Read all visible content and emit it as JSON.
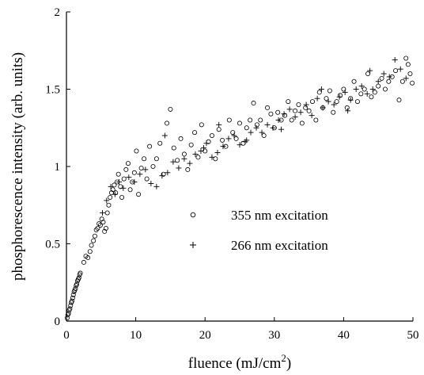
{
  "chart_data": {
    "type": "scatter",
    "title": "",
    "xlabel": "fluence (mJ/cm",
    "xlabel_superscript": "2",
    "xlabel_suffix": ")",
    "ylabel": "phosphorescence intensity (arb. units)",
    "xlim": [
      0,
      50
    ],
    "ylim": [
      0,
      2
    ],
    "x_ticks": [
      "0",
      "10",
      "20",
      "30",
      "40",
      "50"
    ],
    "y_ticks": [
      "0",
      "0.5",
      "1",
      "1.5",
      "2"
    ],
    "grid": false,
    "legend_position": "center-right",
    "legend": [
      {
        "marker": "circle",
        "label": "355 nm excitation"
      },
      {
        "marker": "plus",
        "label": "266 nm excitation"
      }
    ],
    "series": [
      {
        "name": "355 nm excitation",
        "marker": "circle",
        "points": [
          [
            0.1,
            0.02
          ],
          [
            0.2,
            0.04
          ],
          [
            0.3,
            0.05
          ],
          [
            0.4,
            0.07
          ],
          [
            0.5,
            0.08
          ],
          [
            0.6,
            0.1
          ],
          [
            0.7,
            0.12
          ],
          [
            0.8,
            0.13
          ],
          [
            0.9,
            0.15
          ],
          [
            1.0,
            0.17
          ],
          [
            1.1,
            0.19
          ],
          [
            1.2,
            0.2
          ],
          [
            1.3,
            0.21
          ],
          [
            1.4,
            0.23
          ],
          [
            1.5,
            0.24
          ],
          [
            1.6,
            0.26
          ],
          [
            1.7,
            0.27
          ],
          [
            1.8,
            0.28
          ],
          [
            1.9,
            0.3
          ],
          [
            2.0,
            0.31
          ],
          [
            2.5,
            0.38
          ],
          [
            2.8,
            0.42
          ],
          [
            3.1,
            0.41
          ],
          [
            3.4,
            0.45
          ],
          [
            3.6,
            0.49
          ],
          [
            3.9,
            0.52
          ],
          [
            4.1,
            0.55
          ],
          [
            4.3,
            0.59
          ],
          [
            4.5,
            0.6
          ],
          [
            4.7,
            0.63
          ],
          [
            4.9,
            0.62
          ],
          [
            5.1,
            0.66
          ],
          [
            5.3,
            0.64
          ],
          [
            5.5,
            0.58
          ],
          [
            5.7,
            0.6
          ],
          [
            5.9,
            0.7
          ],
          [
            6.1,
            0.75
          ],
          [
            6.3,
            0.8
          ],
          [
            6.5,
            0.83
          ],
          [
            6.7,
            0.85
          ],
          [
            6.9,
            0.88
          ],
          [
            7.1,
            0.83
          ],
          [
            7.3,
            0.9
          ],
          [
            7.5,
            0.95
          ],
          [
            7.8,
            0.87
          ],
          [
            8.0,
            0.8
          ],
          [
            8.3,
            0.92
          ],
          [
            8.6,
            0.98
          ],
          [
            8.9,
            1.02
          ],
          [
            9.2,
            0.85
          ],
          [
            9.5,
            0.9
          ],
          [
            9.8,
            0.96
          ],
          [
            10.1,
            1.1
          ],
          [
            10.4,
            0.82
          ],
          [
            10.8,
            0.99
          ],
          [
            11.2,
            1.05
          ],
          [
            11.6,
            0.92
          ],
          [
            12.0,
            1.13
          ],
          [
            12.5,
            1.0
          ],
          [
            13.0,
            1.05
          ],
          [
            13.5,
            1.15
          ],
          [
            14.0,
            0.95
          ],
          [
            14.5,
            1.28
          ],
          [
            15.0,
            1.37
          ],
          [
            15.5,
            1.12
          ],
          [
            16.0,
            1.04
          ],
          [
            16.5,
            1.18
          ],
          [
            17.0,
            1.08
          ],
          [
            17.5,
            0.98
          ],
          [
            18.0,
            1.14
          ],
          [
            18.5,
            1.22
          ],
          [
            19.0,
            1.06
          ],
          [
            19.5,
            1.27
          ],
          [
            20.0,
            1.1
          ],
          [
            20.5,
            1.16
          ],
          [
            21.0,
            1.2
          ],
          [
            21.5,
            1.05
          ],
          [
            22.0,
            1.24
          ],
          [
            22.5,
            1.17
          ],
          [
            23.0,
            1.13
          ],
          [
            23.5,
            1.3
          ],
          [
            24.0,
            1.22
          ],
          [
            24.5,
            1.18
          ],
          [
            25.0,
            1.28
          ],
          [
            25.5,
            1.15
          ],
          [
            26.0,
            1.25
          ],
          [
            26.5,
            1.3
          ],
          [
            27.0,
            1.41
          ],
          [
            27.5,
            1.27
          ],
          [
            28.0,
            1.3
          ],
          [
            28.5,
            1.2
          ],
          [
            29.0,
            1.38
          ],
          [
            29.5,
            1.34
          ],
          [
            30.0,
            1.25
          ],
          [
            30.5,
            1.35
          ],
          [
            31.0,
            1.3
          ],
          [
            31.5,
            1.33
          ],
          [
            32.0,
            1.42
          ],
          [
            32.5,
            1.3
          ],
          [
            33.0,
            1.36
          ],
          [
            33.5,
            1.4
          ],
          [
            34.0,
            1.28
          ],
          [
            34.5,
            1.38
          ],
          [
            35.0,
            1.36
          ],
          [
            35.5,
            1.42
          ],
          [
            36.0,
            1.3
          ],
          [
            36.5,
            1.48
          ],
          [
            37.0,
            1.38
          ],
          [
            37.5,
            1.44
          ],
          [
            38.0,
            1.49
          ],
          [
            38.5,
            1.35
          ],
          [
            39.0,
            1.42
          ],
          [
            39.5,
            1.46
          ],
          [
            40.0,
            1.5
          ],
          [
            40.5,
            1.38
          ],
          [
            41.0,
            1.44
          ],
          [
            41.5,
            1.55
          ],
          [
            42.0,
            1.42
          ],
          [
            42.5,
            1.47
          ],
          [
            43.0,
            1.5
          ],
          [
            43.5,
            1.6
          ],
          [
            44.0,
            1.45
          ],
          [
            44.5,
            1.48
          ],
          [
            45.0,
            1.52
          ],
          [
            45.5,
            1.57
          ],
          [
            46.0,
            1.5
          ],
          [
            46.5,
            1.55
          ],
          [
            47.0,
            1.58
          ],
          [
            47.5,
            1.62
          ],
          [
            48.0,
            1.43
          ],
          [
            48.5,
            1.55
          ],
          [
            49.0,
            1.7
          ],
          [
            49.3,
            1.66
          ],
          [
            49.6,
            1.6
          ],
          [
            49.9,
            1.54
          ]
        ]
      },
      {
        "name": "266 nm excitation",
        "marker": "plus",
        "points": [
          [
            5.2,
            0.7
          ],
          [
            5.8,
            0.78
          ],
          [
            6.4,
            0.87
          ],
          [
            7.0,
            0.82
          ],
          [
            7.6,
            0.9
          ],
          [
            8.2,
            0.86
          ],
          [
            9.0,
            0.93
          ],
          [
            9.8,
            0.9
          ],
          [
            10.6,
            0.95
          ],
          [
            11.4,
            0.98
          ],
          [
            12.2,
            0.89
          ],
          [
            13.0,
            0.87
          ],
          [
            13.8,
            0.94
          ],
          [
            14.6,
            0.96
          ],
          [
            15.4,
            1.03
          ],
          [
            16.2,
            0.99
          ],
          [
            17.0,
            1.05
          ],
          [
            17.8,
            1.02
          ],
          [
            18.6,
            1.08
          ],
          [
            19.4,
            1.1
          ],
          [
            20.2,
            1.15
          ],
          [
            21.0,
            1.06
          ],
          [
            21.8,
            1.09
          ],
          [
            22.6,
            1.13
          ],
          [
            23.4,
            1.18
          ],
          [
            24.2,
            1.2
          ],
          [
            25.0,
            1.14
          ],
          [
            25.8,
            1.16
          ],
          [
            26.6,
            1.22
          ],
          [
            27.4,
            1.25
          ],
          [
            28.2,
            1.22
          ],
          [
            29.0,
            1.27
          ],
          [
            29.8,
            1.25
          ],
          [
            30.6,
            1.3
          ],
          [
            31.4,
            1.34
          ],
          [
            32.2,
            1.37
          ],
          [
            33.0,
            1.32
          ],
          [
            33.8,
            1.35
          ],
          [
            34.6,
            1.4
          ],
          [
            35.4,
            1.33
          ],
          [
            36.2,
            1.44
          ],
          [
            37.0,
            1.38
          ],
          [
            37.8,
            1.42
          ],
          [
            38.6,
            1.4
          ],
          [
            39.4,
            1.45
          ],
          [
            40.2,
            1.48
          ],
          [
            41.0,
            1.43
          ],
          [
            41.8,
            1.5
          ],
          [
            42.6,
            1.52
          ],
          [
            43.4,
            1.47
          ],
          [
            44.2,
            1.5
          ],
          [
            45.0,
            1.55
          ],
          [
            45.8,
            1.6
          ],
          [
            46.6,
            1.58
          ],
          [
            47.4,
            1.69
          ],
          [
            48.2,
            1.63
          ],
          [
            49.0,
            1.57
          ],
          [
            14.2,
            1.2
          ],
          [
            19.8,
            1.12
          ],
          [
            22.0,
            1.27
          ],
          [
            26.0,
            1.17
          ],
          [
            31.0,
            1.24
          ],
          [
            36.8,
            1.5
          ],
          [
            40.6,
            1.36
          ],
          [
            43.8,
            1.62
          ]
        ]
      }
    ]
  }
}
